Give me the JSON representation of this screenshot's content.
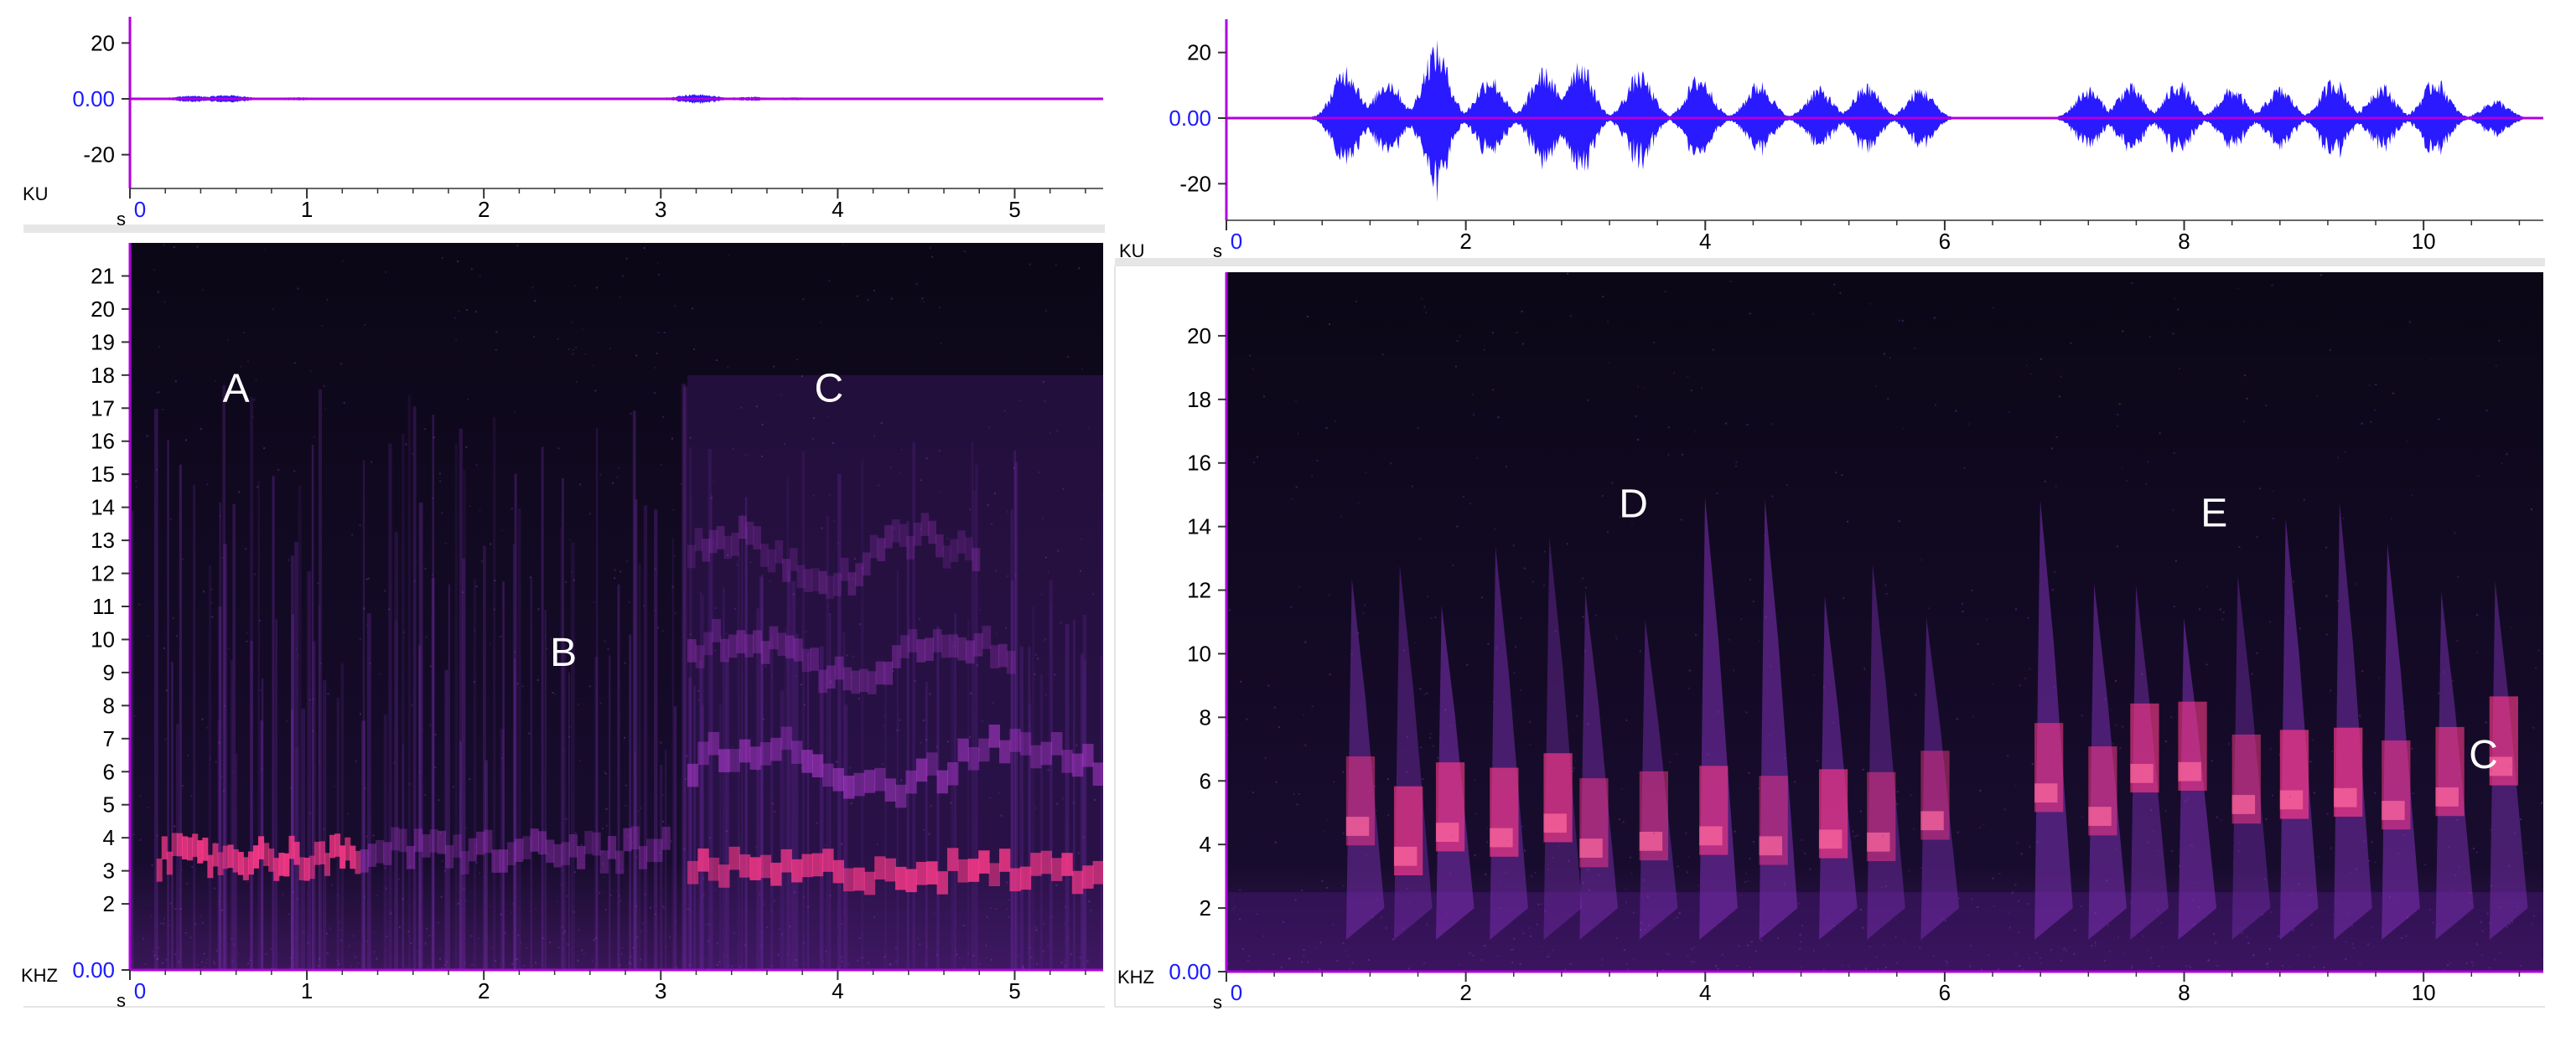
{
  "colors": {
    "background": "#ffffff",
    "waveform": "#2a1aff",
    "axis_line": "#b000e0",
    "zero_line": "#ff8a3d",
    "zero_label": "#1a1aff",
    "spectrogram_dark": "#0b0716",
    "spectrogram_mid": "#5a1a8a",
    "spectrogram_hot": "#ff3a8a"
  },
  "chart_data": [
    {
      "type": "area",
      "name": "waveform-left",
      "yunit": "KU",
      "xunit": "s",
      "ylim": [
        -30,
        30
      ],
      "xlim": [
        0,
        5.5
      ],
      "yticks": [
        20,
        0,
        -20
      ],
      "ytick_labels": [
        "20",
        "0.00",
        "-20"
      ],
      "xticks": [
        0,
        1,
        2,
        3,
        4,
        5
      ],
      "xtick_labels": [
        "0",
        "1",
        "2",
        "3",
        "4",
        "5"
      ],
      "bursts": [
        {
          "x": 0.35,
          "amp": 1.2
        },
        {
          "x": 0.55,
          "amp": 1.5
        },
        {
          "x": 0.95,
          "amp": 0.6
        },
        {
          "x": 3.2,
          "amp": 1.8
        },
        {
          "x": 3.5,
          "amp": 0.8
        },
        {
          "x": 3.75,
          "amp": 0.6
        }
      ]
    },
    {
      "type": "heatmap",
      "name": "spectrogram-left",
      "yunit": "KHZ",
      "xunit": "s",
      "ylim": [
        0,
        22
      ],
      "xlim": [
        0,
        5.5
      ],
      "yticks": [
        21,
        20,
        19,
        18,
        17,
        16,
        15,
        14,
        13,
        12,
        11,
        10,
        9,
        8,
        7,
        6,
        5,
        4,
        3,
        2,
        0
      ],
      "ytick_labels": [
        "21",
        "20",
        "19",
        "18",
        "17",
        "16",
        "15",
        "14",
        "13",
        "12",
        "11",
        "10",
        "9",
        "8",
        "7",
        "6",
        "5",
        "4",
        "3",
        "2",
        "0.00"
      ],
      "xticks": [
        0,
        1,
        2,
        3,
        4,
        5
      ],
      "xtick_labels": [
        "0",
        "1",
        "2",
        "3",
        "4",
        "5"
      ],
      "annotations": [
        {
          "label": "A",
          "x": 0.6,
          "y": 17.2
        },
        {
          "label": "B",
          "x": 2.45,
          "y": 9.2
        },
        {
          "label": "C",
          "x": 3.95,
          "y": 17.2
        }
      ],
      "bands": [
        {
          "x0": 0.15,
          "x1": 1.3,
          "f": 3.4,
          "intensity": 0.9
        },
        {
          "x0": 1.3,
          "x1": 3.05,
          "f": 3.6,
          "intensity": 0.45
        },
        {
          "x0": 3.15,
          "x1": 5.5,
          "f": 3.0,
          "intensity": 0.85
        },
        {
          "x0": 3.15,
          "x1": 5.5,
          "f": 6.2,
          "intensity": 0.6
        },
        {
          "x0": 3.15,
          "x1": 5.0,
          "f": 9.5,
          "intensity": 0.4
        },
        {
          "x0": 3.15,
          "x1": 4.8,
          "f": 12.5,
          "intensity": 0.3
        }
      ]
    },
    {
      "type": "area",
      "name": "waveform-right",
      "yunit": "KU",
      "xunit": "s",
      "ylim": [
        -30,
        30
      ],
      "xlim": [
        0,
        11
      ],
      "yticks": [
        20,
        0,
        -20
      ],
      "ytick_labels": [
        "20",
        "0.00",
        "-20"
      ],
      "xticks": [
        0,
        2,
        4,
        6,
        8,
        10
      ],
      "xtick_labels": [
        "0",
        "2",
        "4",
        "6",
        "8",
        "10"
      ],
      "bursts": [
        {
          "x": 1.0,
          "amp": 17
        },
        {
          "x": 1.35,
          "amp": 13
        },
        {
          "x": 1.75,
          "amp": 24
        },
        {
          "x": 2.2,
          "amp": 14
        },
        {
          "x": 2.65,
          "amp": 16
        },
        {
          "x": 2.95,
          "amp": 19
        },
        {
          "x": 3.45,
          "amp": 15
        },
        {
          "x": 3.95,
          "amp": 14
        },
        {
          "x": 4.45,
          "amp": 12
        },
        {
          "x": 4.95,
          "amp": 10
        },
        {
          "x": 5.35,
          "amp": 11
        },
        {
          "x": 5.8,
          "amp": 10
        },
        {
          "x": 7.2,
          "amp": 10
        },
        {
          "x": 7.55,
          "amp": 11
        },
        {
          "x": 7.95,
          "amp": 12
        },
        {
          "x": 8.4,
          "amp": 10
        },
        {
          "x": 8.8,
          "amp": 10
        },
        {
          "x": 9.25,
          "amp": 13
        },
        {
          "x": 9.65,
          "amp": 11
        },
        {
          "x": 10.1,
          "amp": 13
        },
        {
          "x": 10.6,
          "amp": 6
        }
      ]
    },
    {
      "type": "heatmap",
      "name": "spectrogram-right",
      "yunit": "KHZ",
      "xunit": "s",
      "ylim": [
        0,
        22
      ],
      "xlim": [
        0,
        11
      ],
      "yticks": [
        20,
        18,
        16,
        14,
        12,
        10,
        8,
        6,
        4,
        2,
        0
      ],
      "ytick_labels": [
        "20",
        "18",
        "16",
        "14",
        "12",
        "10",
        "8",
        "6",
        "4",
        "2",
        "0.00"
      ],
      "xticks": [
        0,
        2,
        4,
        6,
        8,
        10
      ],
      "xtick_labels": [
        "0",
        "2",
        "4",
        "6",
        "8",
        "10"
      ],
      "annotations": [
        {
          "label": "D",
          "x": 3.4,
          "y": 14.3
        },
        {
          "label": "E",
          "x": 8.25,
          "y": 14.0
        },
        {
          "label": "C",
          "x": 10.5,
          "y": 6.4
        }
      ],
      "syllables": [
        1.0,
        1.4,
        1.75,
        2.2,
        2.65,
        2.95,
        3.45,
        3.95,
        4.45,
        4.95,
        5.35,
        5.8,
        6.75,
        7.2,
        7.55,
        7.95,
        8.4,
        8.8,
        9.25,
        9.65,
        10.1,
        10.55
      ]
    }
  ]
}
